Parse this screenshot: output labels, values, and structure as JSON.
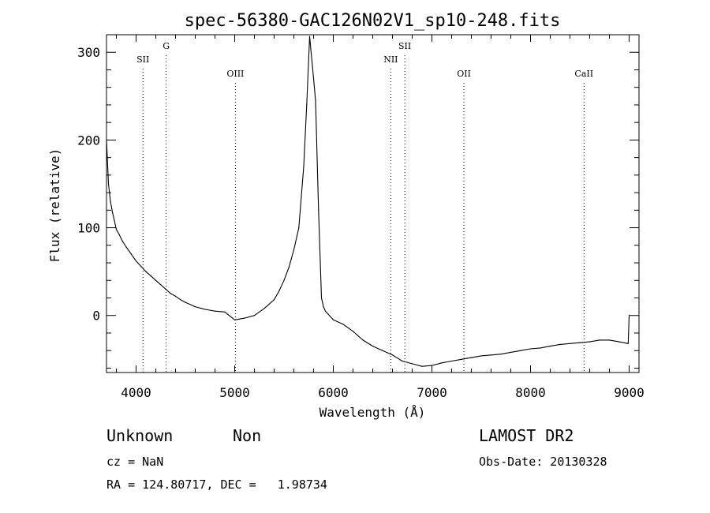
{
  "chart_data": {
    "type": "line",
    "title": "spec-56380-GAC126N02V1_sp10-248.fits",
    "xlabel": "Wavelength (Å)",
    "ylabel": "Flux (relative)",
    "xlim": [
      3700,
      9100
    ],
    "ylim": [
      -65,
      320
    ],
    "xticks": [
      4000,
      5000,
      6000,
      7000,
      8000,
      9000
    ],
    "yticks": [
      0,
      100,
      200,
      300
    ],
    "grid": false,
    "series": [
      {
        "x": [
          3700,
          3720,
          3740,
          3760,
          3780,
          3800,
          3830,
          3860,
          3900,
          3950,
          4000,
          4050,
          4100,
          4150,
          4200,
          4250,
          4300,
          4350,
          4400,
          4450,
          4500,
          4600,
          4700,
          4800,
          4900,
          5000,
          5100,
          5200,
          5300,
          5400,
          5450,
          5500,
          5550,
          5600,
          5650,
          5700,
          5730,
          5760,
          5800,
          5820,
          5850,
          5880,
          5900,
          5920,
          6000,
          6100,
          6200,
          6300,
          6400,
          6500,
          6600,
          6700,
          6800,
          6900,
          7000,
          7100,
          7200,
          7300,
          7400,
          7500,
          7600,
          7700,
          7800,
          7900,
          8000,
          8100,
          8200,
          8300,
          8400,
          8500,
          8600,
          8700,
          8800,
          8900,
          8990,
          9000
        ],
        "y": [
          200,
          150,
          130,
          118,
          108,
          98,
          92,
          85,
          78,
          70,
          62,
          56,
          50,
          45,
          40,
          35,
          30,
          25,
          22,
          18,
          15,
          10,
          7,
          5,
          4,
          -5,
          -3,
          0,
          8,
          18,
          28,
          40,
          55,
          75,
          100,
          170,
          240,
          318,
          270,
          245,
          120,
          20,
          10,
          5,
          -5,
          -10,
          -18,
          -28,
          -35,
          -40,
          -45,
          -52,
          -55,
          -58,
          -57,
          -54,
          -52,
          -50,
          -48,
          -46,
          -45,
          -44,
          -42,
          -40,
          -38,
          -37,
          -35,
          -33,
          -32,
          -31,
          -30,
          -28,
          -28,
          -30,
          -32,
          0
        ]
      }
    ],
    "annotations": [
      {
        "label": "SII",
        "x": 4070,
        "row": "low"
      },
      {
        "label": "G",
        "x": 4305,
        "row": "high"
      },
      {
        "label": "OIII",
        "x": 5007,
        "row": "mid"
      },
      {
        "label": "NII",
        "x": 6583,
        "row": "low"
      },
      {
        "label": "SII",
        "x": 6725,
        "row": "high"
      },
      {
        "label": "OII",
        "x": 7325,
        "row": "mid"
      },
      {
        "label": "CaII",
        "x": 8542,
        "row": "mid"
      }
    ]
  },
  "info": {
    "classification": "Unknown",
    "subclass": "Non",
    "survey": "LAMOST DR2",
    "cz": "cz = NaN",
    "obs_date": "Obs-Date: 20130328",
    "coords": "RA = 124.80717, DEC =   1.98734"
  }
}
